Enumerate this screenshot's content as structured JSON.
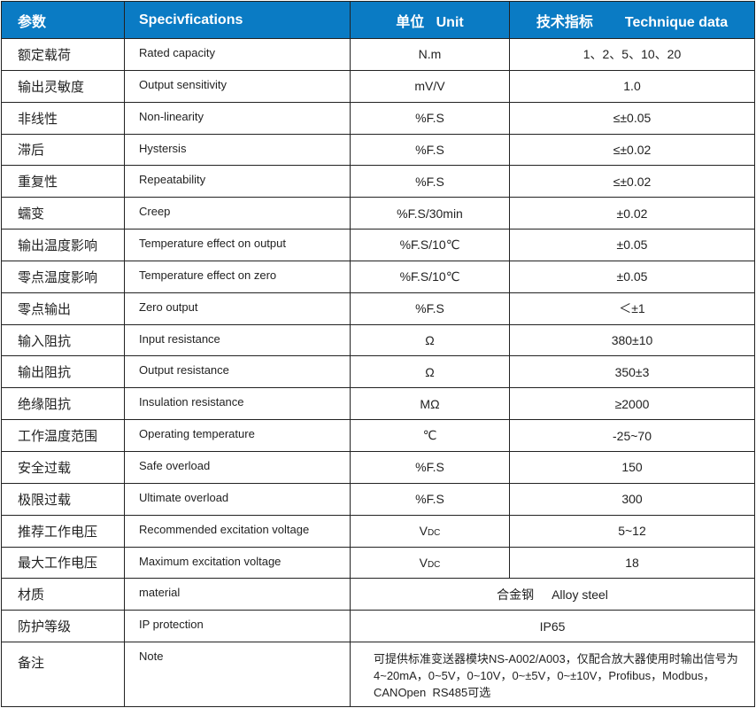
{
  "header": {
    "param": "参数",
    "spec": "Specivfications",
    "unit_cn": "单位",
    "unit_en": "Unit",
    "data_cn": "技术指标",
    "data_en": "Technique data"
  },
  "colors": {
    "header_bg": "#0a7bc4"
  },
  "rows": [
    {
      "cn": "额定载荷",
      "en": "Rated capacity",
      "unit": "N.m",
      "value": "1、2、5、10、20"
    },
    {
      "cn": "输出灵敏度",
      "en": "Output sensitivity",
      "unit": "mV/V",
      "value": "1.0"
    },
    {
      "cn": "非线性",
      "en": "Non-linearity",
      "unit": "%F.S",
      "value": "≤±0.05"
    },
    {
      "cn": "滞后",
      "en": "Hystersis",
      "unit": "%F.S",
      "value": "≤±0.02"
    },
    {
      "cn": "重复性",
      "en": "Repeatability",
      "unit": "%F.S",
      "value": "≤±0.02"
    },
    {
      "cn": "蠕变",
      "en": "Creep",
      "unit": "%F.S/30min",
      "value": "±0.02"
    },
    {
      "cn": "输出温度影响",
      "en": "Temperature effect on output",
      "unit": "%F.S/10℃",
      "value": "±0.05"
    },
    {
      "cn": "零点温度影响",
      "en": "Temperature effect on zero",
      "unit": "%F.S/10℃",
      "value": "±0.05"
    },
    {
      "cn": "零点输出",
      "en": "Zero output",
      "unit": "%F.S",
      "value": "＜±1"
    },
    {
      "cn": "输入阻抗",
      "en": "Input resistance",
      "unit": "Ω",
      "value": "380±10"
    },
    {
      "cn": "输出阻抗",
      "en": "Output resistance",
      "unit": "Ω",
      "value": "350±3"
    },
    {
      "cn": "绝缘阻抗",
      "en": "Insulation resistance",
      "unit": "MΩ",
      "value": "≥2000"
    },
    {
      "cn": "工作温度范围",
      "en": "Operating temperature",
      "unit": "℃",
      "value": "-25~70"
    },
    {
      "cn": "安全过载",
      "en": "Safe overload",
      "unit": "%F.S",
      "value": "150"
    },
    {
      "cn": "极限过载",
      "en": "Ultimate overload",
      "unit": "%F.S",
      "value": "300"
    },
    {
      "cn": "推荐工作电压",
      "en": "Recommended excitation voltage",
      "unit_main": "V",
      "unit_sub": "DC",
      "value": "5~12"
    },
    {
      "cn": "最大工作电压",
      "en": "Maximum excitation voltage",
      "unit_main": "V",
      "unit_sub": "DC",
      "value": "18"
    }
  ],
  "material": {
    "cn": "材质",
    "en": "material",
    "value_cn": "合金钢",
    "value_en": "Alloy steel"
  },
  "protection": {
    "cn": "防护等级",
    "en": "IP protection",
    "value": "IP65"
  },
  "note": {
    "cn": "备注",
    "en": "Note",
    "line1": "可提供标准变送器模块NS-A002/A003，仅配合放大器使用时输出信号为",
    "line2": "4~20mA，0~5V，0~10V，0~±5V，0~±10V，Profibus，Modbus，",
    "line3": "CANOpen  RS485可选"
  }
}
